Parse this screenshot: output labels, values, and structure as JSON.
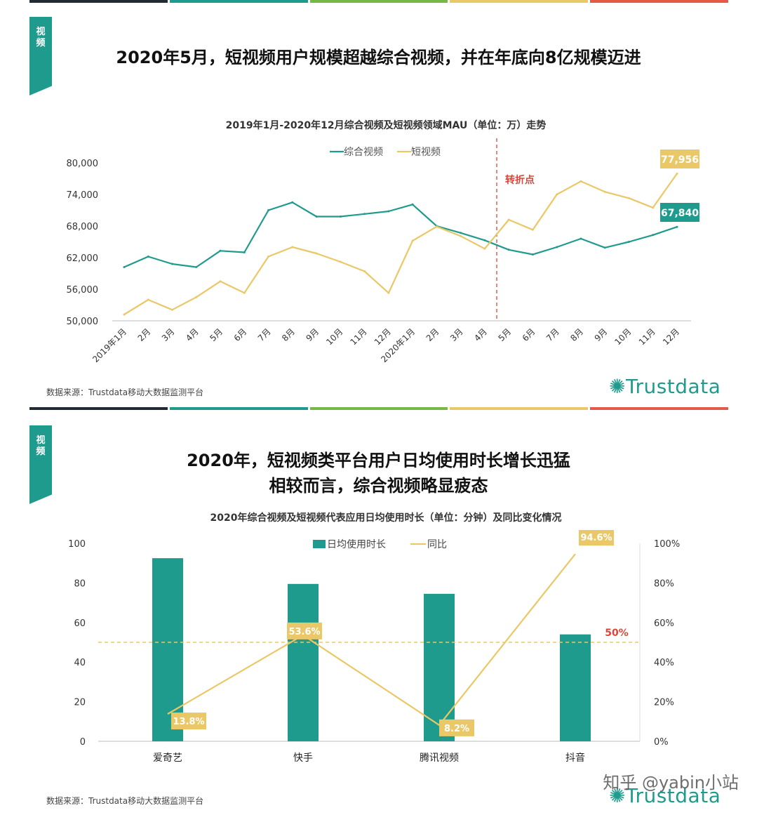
{
  "colors": {
    "teal": "#1f9b8e",
    "yellow": "#eac867",
    "red_marker": "#d9463b",
    "bar_palette": [
      "#222a33",
      "#1f9b8e",
      "#76b845",
      "#eac867",
      "#e45a47"
    ]
  },
  "section1": {
    "tag": "视频",
    "headline": "2020年5月，短视频用户规模超越综合视频，并在年底向8亿规模迈进",
    "subtitle": "2019年1月-2020年12月综合视频及短视频领域MAU（单位：万）走势",
    "source": "数据来源：Trustdata移动大数据监测平台",
    "logo": "Trustdata"
  },
  "section2": {
    "tag": "视频",
    "headline_line1": "2020年，短视频类平台用户日均使用时长增长迅猛",
    "headline_line2": "相较而言，综合视频略显疲态",
    "subtitle": "2020年综合视频及短视频代表应用日均使用时长（单位：分钟）及同比变化情况",
    "source": "数据来源：Trustdata移动大数据监测平台",
    "logo": "Trustdata"
  },
  "watermark": "知乎 @yabin小站",
  "chart_data": [
    {
      "type": "line",
      "title": "2019年1月-2020年12月综合视频及短视频领域MAU（单位：万）走势",
      "x": [
        "2019年1月",
        "2月",
        "3月",
        "4月",
        "5月",
        "6月",
        "7月",
        "8月",
        "9月",
        "10月",
        "11月",
        "12月",
        "2020年1月",
        "2月",
        "3月",
        "4月",
        "5月",
        "6月",
        "7月",
        "8月",
        "9月",
        "10月",
        "11月",
        "12月"
      ],
      "series": [
        {
          "name": "综合视频",
          "color": "#1f9b8e",
          "values": [
            60200,
            62200,
            60800,
            60200,
            63300,
            63000,
            71000,
            72500,
            69800,
            69800,
            70300,
            70800,
            72100,
            68000,
            66700,
            65300,
            63500,
            62600,
            64000,
            65600,
            63900,
            65000,
            66300,
            67840
          ]
        },
        {
          "name": "短视频",
          "color": "#eac867",
          "values": [
            51200,
            54000,
            52100,
            54500,
            57500,
            55300,
            62200,
            64000,
            62800,
            61200,
            59400,
            55300,
            65200,
            67900,
            66100,
            63700,
            69200,
            67300,
            74000,
            76500,
            74500,
            73300,
            71500,
            77956
          ]
        }
      ],
      "yticks": [
        "50,000",
        "56,000",
        "62,000",
        "68,000",
        "74,000",
        "80,000"
      ],
      "ylim": [
        50000,
        80000
      ],
      "legend": "top-left",
      "annotations": [
        {
          "text": "转折点",
          "at_x": "4月",
          "type": "vertical-dashed-line"
        },
        {
          "text": "77,956",
          "series": "短视频",
          "at_x": "12月"
        },
        {
          "text": "67,840",
          "series": "综合视频",
          "at_x": "12月"
        }
      ]
    },
    {
      "type": "bar",
      "title": "2020年综合视频及短视频代表应用日均使用时长（单位：分钟）及同比变化情况",
      "categories": [
        "爱奇艺",
        "快手",
        "腾讯视频",
        "抖音"
      ],
      "series": [
        {
          "name": "日均使用时长",
          "type": "bar",
          "axis": "left",
          "color": "#1f9b8e",
          "values": [
            92.5,
            79.5,
            74.5,
            54
          ]
        },
        {
          "name": "同比",
          "type": "line",
          "axis": "right",
          "color": "#eac867",
          "values": [
            13.8,
            53.6,
            8.2,
            94.6
          ],
          "labels": [
            "13.8%",
            "53.6%",
            "8.2%",
            "94.6%"
          ]
        }
      ],
      "yticks_left": [
        "0",
        "20",
        "40",
        "60",
        "80",
        "100"
      ],
      "ylim_left": [
        0,
        100
      ],
      "yticks_right": [
        "0%",
        "20%",
        "40%",
        "60%",
        "80%",
        "100%"
      ],
      "ylim_right": [
        0,
        100
      ],
      "reference_line": {
        "value": 50,
        "label": "50%"
      },
      "legend": "top-center"
    }
  ]
}
